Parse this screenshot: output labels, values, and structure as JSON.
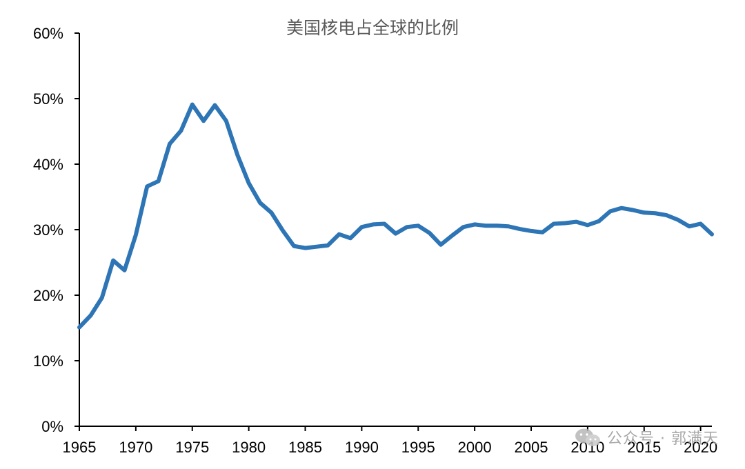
{
  "chart_data": {
    "type": "line",
    "title": "美国核电占全球的比例",
    "xlabel": "",
    "ylabel": "",
    "xlim": [
      1965,
      2021
    ],
    "ylim": [
      0,
      60
    ],
    "x_ticks": [
      "1965",
      "1970",
      "1975",
      "1980",
      "1985",
      "1990",
      "1995",
      "2000",
      "2005",
      "2010",
      "2015",
      "2020"
    ],
    "y_ticks": [
      "0%",
      "10%",
      "20%",
      "30%",
      "40%",
      "50%",
      "60%"
    ],
    "grid": false,
    "legend": "none",
    "colors": {
      "line": "#2e75b6",
      "axis": "#000000",
      "title": "#595959"
    },
    "series": [
      {
        "x": [
          1965,
          1966,
          1967,
          1968,
          1969,
          1970,
          1971,
          1972,
          1973,
          1974,
          1975,
          1976,
          1977,
          1978,
          1979,
          1980,
          1981,
          1982,
          1983,
          1984,
          1985,
          1986,
          1987,
          1988,
          1989,
          1990,
          1991,
          1992,
          1993,
          1994,
          1995,
          1996,
          1997,
          1998,
          1999,
          2000,
          2001,
          2002,
          2003,
          2004,
          2005,
          2006,
          2007,
          2008,
          2009,
          2010,
          2011,
          2012,
          2013,
          2014,
          2015,
          2016,
          2017,
          2018,
          2019,
          2020,
          2021
        ],
        "values": [
          15.1,
          16.9,
          19.6,
          25.3,
          23.8,
          29.2,
          36.6,
          37.4,
          43.1,
          45.1,
          49.1,
          46.6,
          49.0,
          46.6,
          41.4,
          37.1,
          34.1,
          32.6,
          29.9,
          27.5,
          27.2,
          27.4,
          27.6,
          29.3,
          28.7,
          30.4,
          30.8,
          30.9,
          29.4,
          30.4,
          30.6,
          29.5,
          27.7,
          29.1,
          30.4,
          30.8,
          30.6,
          30.6,
          30.5,
          30.1,
          29.8,
          29.6,
          30.9,
          31.0,
          31.2,
          30.7,
          31.3,
          32.8,
          33.3,
          33.0,
          32.6,
          32.5,
          32.2,
          31.5,
          30.5,
          30.9,
          29.3
        ]
      }
    ]
  },
  "watermark": {
    "icon": "wechat-icon",
    "text": "公众号 · 郭满天"
  }
}
